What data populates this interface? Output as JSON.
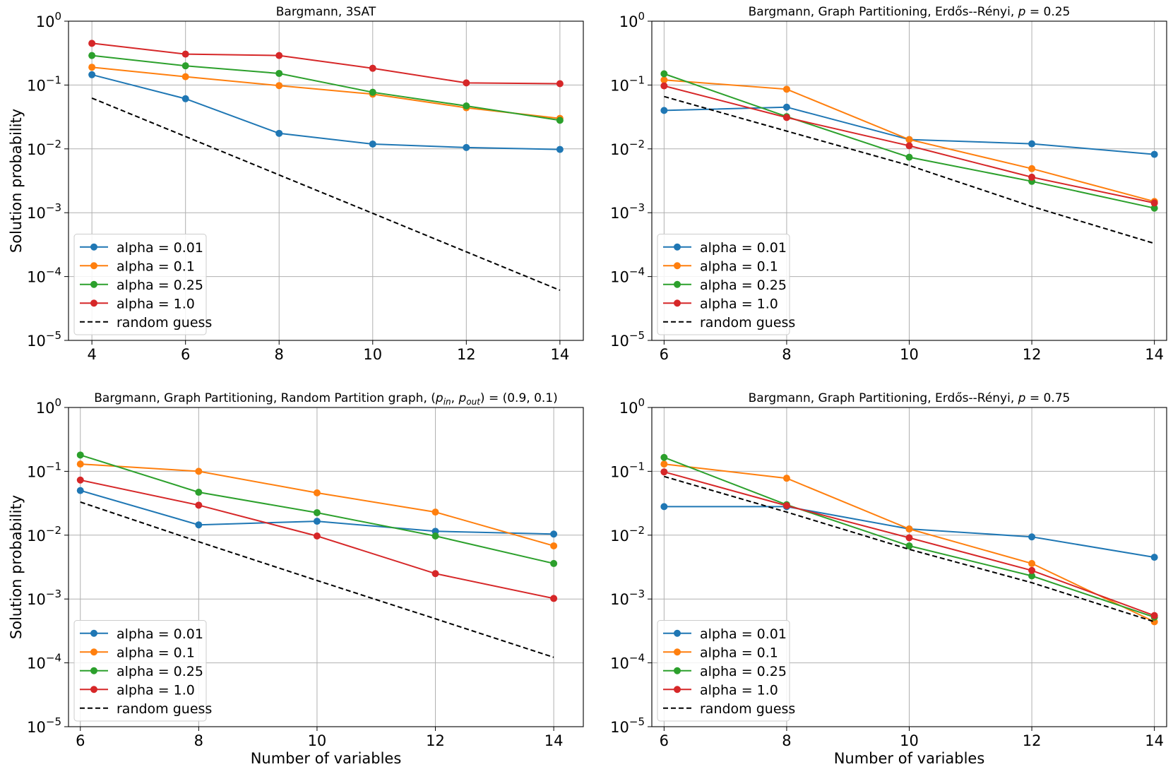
{
  "figure": {
    "ylabel": "Solution probability",
    "xlabel": "Number of variables"
  },
  "colors": {
    "alpha = 0.01": "#1f77b4",
    "alpha = 0.1": "#ff7f0e",
    "alpha = 0.25": "#2ca02c",
    "alpha = 1.0": "#d62728",
    "random guess": "#000000"
  },
  "legend_labels": [
    "alpha = 0.01",
    "alpha = 0.1",
    "alpha = 0.25",
    "alpha = 1.0",
    "random guess"
  ],
  "chart_data": [
    {
      "type": "line",
      "title": "Bargmann, 3SAT",
      "xlabel": "",
      "ylabel": "Solution probability",
      "yscale": "log",
      "ylim": [
        1e-05,
        1
      ],
      "xlim": [
        3.5,
        14.5
      ],
      "xticks": [
        4,
        6,
        8,
        10,
        12,
        14
      ],
      "yticks_exponents": [
        0,
        -1,
        -2,
        -3,
        -4,
        -5
      ],
      "legend_position": "lower-left",
      "grid": true,
      "series": [
        {
          "name": "alpha = 0.01",
          "x": [
            4,
            6,
            8,
            10,
            12,
            14
          ],
          "values": [
            0.145,
            0.061,
            0.0175,
            0.0119,
            0.0105,
            0.0098
          ]
        },
        {
          "name": "alpha = 0.1",
          "x": [
            4,
            6,
            8,
            10,
            12,
            14
          ],
          "values": [
            0.19,
            0.135,
            0.098,
            0.072,
            0.044,
            0.03
          ]
        },
        {
          "name": "alpha = 0.25",
          "x": [
            4,
            6,
            8,
            10,
            12,
            14
          ],
          "values": [
            0.29,
            0.2,
            0.152,
            0.077,
            0.047,
            0.028
          ]
        },
        {
          "name": "alpha = 1.0",
          "x": [
            4,
            6,
            8,
            10,
            12,
            14
          ],
          "values": [
            0.45,
            0.305,
            0.29,
            0.183,
            0.108,
            0.105
          ]
        },
        {
          "name": "random guess",
          "x": [
            4,
            6,
            8,
            10,
            12,
            14
          ],
          "values": [
            0.0625,
            0.015625,
            0.00390625,
            0.0009765625,
            0.000244140625,
            6.103515625e-05
          ],
          "style": "dashed"
        }
      ]
    },
    {
      "type": "line",
      "title": "Bargmann, Graph Partitioning, Erdős--Rényi, ",
      "title_math_var": "p",
      "title_math_rest": " = 0.25",
      "xlabel": "",
      "ylabel": "",
      "yscale": "log",
      "ylim": [
        1e-05,
        1
      ],
      "xlim": [
        5.8,
        14.2
      ],
      "xticks": [
        6,
        8,
        10,
        12,
        14
      ],
      "yticks_exponents": [
        0,
        -1,
        -2,
        -3,
        -4,
        -5
      ],
      "legend_position": "lower-left",
      "grid": true,
      "series": [
        {
          "name": "alpha = 0.01",
          "x": [
            6,
            8,
            10,
            12,
            14
          ],
          "values": [
            0.04,
            0.045,
            0.014,
            0.012,
            0.0082
          ]
        },
        {
          "name": "alpha = 0.1",
          "x": [
            6,
            8,
            10,
            12,
            14
          ],
          "values": [
            0.12,
            0.086,
            0.014,
            0.0049,
            0.0015
          ]
        },
        {
          "name": "alpha = 0.25",
          "x": [
            6,
            8,
            10,
            12,
            14
          ],
          "values": [
            0.15,
            0.032,
            0.0074,
            0.0031,
            0.00118
          ]
        },
        {
          "name": "alpha = 1.0",
          "x": [
            6,
            8,
            10,
            12,
            14
          ],
          "values": [
            0.097,
            0.031,
            0.0112,
            0.0036,
            0.00142
          ]
        },
        {
          "name": "random guess",
          "x": [
            6,
            8,
            10,
            12,
            14
          ],
          "values": [
            0.066,
            0.019,
            0.0055,
            0.00125,
            0.00033
          ],
          "style": "dashed"
        }
      ]
    },
    {
      "type": "line",
      "title": "Bargmann, Graph Partitioning, Random Partition graph, ",
      "title_math": "(p_in, p_out) = (0.9, 0.1)",
      "xlabel": "Number of variables",
      "ylabel": "Solution probability",
      "yscale": "log",
      "ylim": [
        1e-05,
        1
      ],
      "xlim": [
        5.8,
        14.5
      ],
      "xticks": [
        6,
        8,
        10,
        12,
        14
      ],
      "yticks_exponents": [
        0,
        -1,
        -2,
        -3,
        -4,
        -5
      ],
      "legend_position": "lower-left",
      "grid": true,
      "series": [
        {
          "name": "alpha = 0.01",
          "x": [
            6,
            8,
            10,
            12,
            14
          ],
          "values": [
            0.05,
            0.0145,
            0.0165,
            0.0115,
            0.0104
          ]
        },
        {
          "name": "alpha = 0.1",
          "x": [
            6,
            8,
            10,
            12,
            14
          ],
          "values": [
            0.13,
            0.1,
            0.046,
            0.023,
            0.0068
          ]
        },
        {
          "name": "alpha = 0.25",
          "x": [
            6,
            8,
            10,
            12,
            14
          ],
          "values": [
            0.18,
            0.047,
            0.0225,
            0.0097,
            0.0036
          ]
        },
        {
          "name": "alpha = 1.0",
          "x": [
            6,
            8,
            10,
            12,
            14
          ],
          "values": [
            0.073,
            0.0295,
            0.0097,
            0.0025,
            0.00102
          ]
        },
        {
          "name": "random guess",
          "x": [
            6,
            8,
            10,
            12,
            14
          ],
          "values": [
            0.033,
            0.0079,
            0.00195,
            0.00049,
            0.000122
          ],
          "style": "dashed"
        }
      ]
    },
    {
      "type": "line",
      "title": "Bargmann, Graph Partitioning, Erdős--Rényi, ",
      "title_math_var": "p",
      "title_math_rest": " = 0.75",
      "xlabel": "Number of variables",
      "ylabel": "",
      "yscale": "log",
      "ylim": [
        1e-05,
        1
      ],
      "xlim": [
        5.8,
        14.2
      ],
      "xticks": [
        6,
        8,
        10,
        12,
        14
      ],
      "yticks_exponents": [
        0,
        -1,
        -2,
        -3,
        -4,
        -5
      ],
      "legend_position": "lower-left",
      "grid": true,
      "series": [
        {
          "name": "alpha = 0.01",
          "x": [
            6,
            8,
            10,
            12,
            14
          ],
          "values": [
            0.028,
            0.028,
            0.0125,
            0.0094,
            0.0045
          ]
        },
        {
          "name": "alpha = 0.1",
          "x": [
            6,
            8,
            10,
            12,
            14
          ],
          "values": [
            0.13,
            0.078,
            0.0125,
            0.0036,
            0.00044
          ]
        },
        {
          "name": "alpha = 0.25",
          "x": [
            6,
            8,
            10,
            12,
            14
          ],
          "values": [
            0.165,
            0.03,
            0.0068,
            0.0023,
            0.00052
          ]
        },
        {
          "name": "alpha = 1.0",
          "x": [
            6,
            8,
            10,
            12,
            14
          ],
          "values": [
            0.098,
            0.029,
            0.0091,
            0.0028,
            0.00055
          ]
        },
        {
          "name": "random guess",
          "x": [
            6,
            8,
            10,
            12,
            14
          ],
          "values": [
            0.083,
            0.023,
            0.006,
            0.0018,
            0.00044
          ],
          "style": "dashed"
        }
      ]
    }
  ]
}
